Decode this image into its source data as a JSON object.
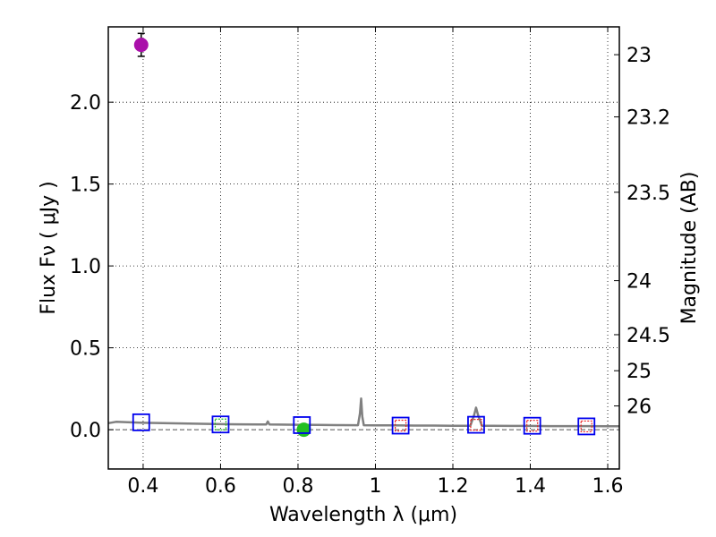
{
  "chart_data": {
    "type": "scatter",
    "xlabel": "Wavelength  λ (μm)",
    "ylabel": "Flux  Fν  ( μJy )",
    "y2label": "Magnitude (AB)",
    "xlim": [
      0.31,
      1.63
    ],
    "ylim": [
      -0.24,
      2.46
    ],
    "grid": true,
    "x_ticks": [
      0.4,
      0.6,
      0.8,
      1.0,
      1.2,
      1.4,
      1.6
    ],
    "x_tick_labels": [
      "0.4",
      "0.6",
      "0.8",
      "1",
      "1.2",
      "1.4",
      "1.6"
    ],
    "y_ticks": [
      0.0,
      0.5,
      1.0,
      1.5,
      2.0
    ],
    "y_tick_labels": [
      "0.0",
      "0.5",
      "1.0",
      "1.5",
      "2.0"
    ],
    "y2_ticks": [
      {
        "label": "23",
        "flux": 2.29
      },
      {
        "label": "23.2",
        "flux": 1.91
      },
      {
        "label": "23.5",
        "flux": 1.45
      },
      {
        "label": "24",
        "flux": 0.91
      },
      {
        "label": "24.5",
        "flux": 0.58
      },
      {
        "label": "25",
        "flux": 0.36
      },
      {
        "label": "26",
        "flux": 0.145
      }
    ],
    "zero_line": 0.0,
    "model_sed": {
      "name": "model spectrum",
      "color": "#808080",
      "points": [
        [
          0.31,
          0.04
        ],
        [
          0.33,
          0.048
        ],
        [
          0.36,
          0.046
        ],
        [
          0.4,
          0.042
        ],
        [
          0.45,
          0.04
        ],
        [
          0.5,
          0.038
        ],
        [
          0.55,
          0.036
        ],
        [
          0.6,
          0.034
        ],
        [
          0.65,
          0.033
        ],
        [
          0.7,
          0.032
        ],
        [
          0.718,
          0.032
        ],
        [
          0.722,
          0.05
        ],
        [
          0.726,
          0.032
        ],
        [
          0.75,
          0.031
        ],
        [
          0.8,
          0.03
        ],
        [
          0.85,
          0.029
        ],
        [
          0.9,
          0.028
        ],
        [
          0.955,
          0.027
        ],
        [
          0.96,
          0.1
        ],
        [
          0.963,
          0.19
        ],
        [
          0.966,
          0.08
        ],
        [
          0.97,
          0.027
        ],
        [
          1.0,
          0.026
        ],
        [
          1.05,
          0.026
        ],
        [
          1.1,
          0.025
        ],
        [
          1.15,
          0.025
        ],
        [
          1.2,
          0.024
        ],
        [
          1.245,
          0.024
        ],
        [
          1.255,
          0.09
        ],
        [
          1.26,
          0.135
        ],
        [
          1.265,
          0.09
        ],
        [
          1.275,
          0.024
        ],
        [
          1.3,
          0.024
        ],
        [
          1.35,
          0.023
        ],
        [
          1.4,
          0.023
        ],
        [
          1.45,
          0.022
        ],
        [
          1.5,
          0.022
        ],
        [
          1.55,
          0.022
        ],
        [
          1.6,
          0.021
        ],
        [
          1.63,
          0.021
        ]
      ]
    },
    "series": [
      {
        "name": "observed photometry",
        "marker": "circle",
        "color": "#aa10aa",
        "points": [
          {
            "x": 0.395,
            "y": 2.35,
            "yerr": 0.07
          }
        ]
      },
      {
        "name": "green photometry",
        "marker": "circle",
        "color": "#22c022",
        "points": [
          {
            "x": 0.815,
            "y": 0.0
          }
        ]
      },
      {
        "name": "model synthetic photometry",
        "marker": "square-open",
        "color": "#0000ee",
        "points": [
          {
            "x": 0.395,
            "y": 0.045
          },
          {
            "x": 0.6,
            "y": 0.032
          },
          {
            "x": 0.81,
            "y": 0.028
          },
          {
            "x": 1.065,
            "y": 0.025
          },
          {
            "x": 1.26,
            "y": 0.03
          },
          {
            "x": 1.405,
            "y": 0.024
          },
          {
            "x": 1.545,
            "y": 0.02
          }
        ]
      },
      {
        "name": "upper limits",
        "marker": "square-small",
        "colors": [
          "#22c022",
          "#ee2222"
        ],
        "points": [
          {
            "x": 0.6,
            "y": 0.032,
            "color": "#22c022"
          },
          {
            "x": 1.065,
            "y": 0.025,
            "color": "#ee2222"
          },
          {
            "x": 1.26,
            "y": 0.03,
            "color": "#ee2222"
          },
          {
            "x": 1.405,
            "y": 0.024,
            "color": "#ee2222"
          },
          {
            "x": 1.545,
            "y": 0.02,
            "color": "#ee2222"
          }
        ]
      }
    ]
  }
}
